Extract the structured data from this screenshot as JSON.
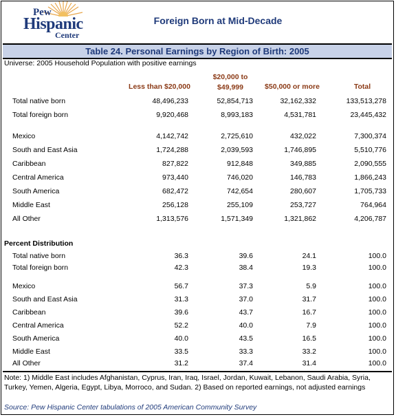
{
  "logo": {
    "line1": "Pew",
    "line2": "Hispanic",
    "line3": "Center"
  },
  "header_title": "Foreign Born at Mid-Decade",
  "table_title": "Table 24. Personal Earnings by Region of Birth:  2005",
  "universe": "Universe: 2005 Household Population with positive earnings",
  "columns": {
    "c1": "Less than $20,000",
    "c2a": "$20,000 to",
    "c2b": "$49,999",
    "c3": "$50,000 or more",
    "c4": "Total"
  },
  "counts": [
    {
      "label": "Total native born",
      "c1": "48,496,233",
      "c2": "52,854,713",
      "c3": "32,162,332",
      "c4": "133,513,278"
    },
    {
      "label": "Total foreign born",
      "c1": "9,920,468",
      "c2": "8,993,183",
      "c3": "4,531,781",
      "c4": "23,445,432"
    },
    {
      "label": "Mexico",
      "c1": "4,142,742",
      "c2": "2,725,610",
      "c3": "432,022",
      "c4": "7,300,374"
    },
    {
      "label": "South and East Asia",
      "c1": "1,724,288",
      "c2": "2,039,593",
      "c3": "1,746,895",
      "c4": "5,510,776"
    },
    {
      "label": "Caribbean",
      "c1": "827,822",
      "c2": "912,848",
      "c3": "349,885",
      "c4": "2,090,555"
    },
    {
      "label": "Central America",
      "c1": "973,440",
      "c2": "746,020",
      "c3": "146,783",
      "c4": "1,866,243"
    },
    {
      "label": "South America",
      "c1": "682,472",
      "c2": "742,654",
      "c3": "280,607",
      "c4": "1,705,733"
    },
    {
      "label": "Middle East",
      "c1": "256,128",
      "c2": "255,109",
      "c3": "253,727",
      "c4": "764,964"
    },
    {
      "label": "All Other",
      "c1": "1,313,576",
      "c2": "1,571,349",
      "c3": "1,321,862",
      "c4": "4,206,787"
    }
  ],
  "percent_section": "Percent Distribution",
  "percents": [
    {
      "label": "Total native born",
      "c1": "36.3",
      "c2": "39.6",
      "c3": "24.1",
      "c4": "100.0"
    },
    {
      "label": "Total foreign born",
      "c1": "42.3",
      "c2": "38.4",
      "c3": "19.3",
      "c4": "100.0"
    },
    {
      "label": "Mexico",
      "c1": "56.7",
      "c2": "37.3",
      "c3": "5.9",
      "c4": "100.0"
    },
    {
      "label": "South and East Asia",
      "c1": "31.3",
      "c2": "37.0",
      "c3": "31.7",
      "c4": "100.0"
    },
    {
      "label": "Caribbean",
      "c1": "39.6",
      "c2": "43.7",
      "c3": "16.7",
      "c4": "100.0"
    },
    {
      "label": "Central America",
      "c1": "52.2",
      "c2": "40.0",
      "c3": "7.9",
      "c4": "100.0"
    },
    {
      "label": "South America",
      "c1": "40.0",
      "c2": "43.5",
      "c3": "16.5",
      "c4": "100.0"
    },
    {
      "label": "Middle East",
      "c1": "33.5",
      "c2": "33.3",
      "c3": "33.2",
      "c4": "100.0"
    },
    {
      "label": "All Other",
      "c1": "31.2",
      "c2": "37.4",
      "c3": "31.4",
      "c4": "100.0"
    }
  ],
  "note": "Note:  1) Middle East includes Afghanistan, Cyprus, Iran, Iraq, Israel, Jordan, Kuwait, Lebanon, Saudi Arabia, Syria, Turkey, Yemen, Algeria, Egypt, Libya, Morroco, and Sudan.   2) Based on reported earnings, not adjusted earnings",
  "source": "Source: Pew Hispanic Center tabulations of 2005 American Community Survey"
}
